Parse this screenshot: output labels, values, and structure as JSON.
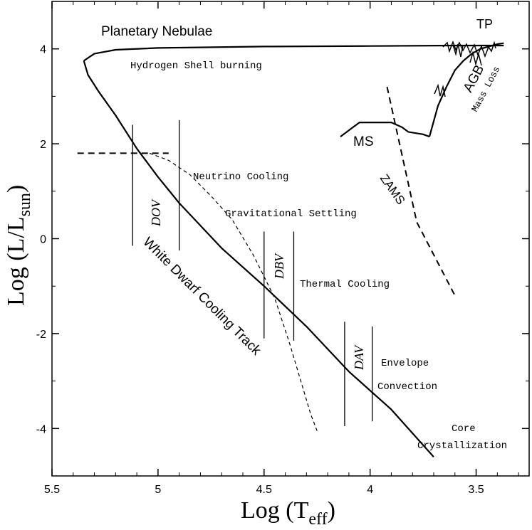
{
  "chart_data": {
    "type": "line",
    "x_axis": {
      "label_main": "Log (T",
      "label_sub": "eff",
      "label_close": ")",
      "range": [
        5.5,
        3.25
      ],
      "reversed": true,
      "ticks": [
        5.5,
        5,
        4.5,
        4,
        3.5
      ],
      "tick_labels": [
        "5.5",
        "5",
        "4.5",
        "4",
        "3.5"
      ]
    },
    "y_axis": {
      "label_main": "Log (L/L",
      "label_sub": "sun",
      "label_close": ")",
      "range": [
        -5,
        5
      ],
      "ticks": [
        -4,
        -2,
        0,
        2,
        4
      ],
      "tick_labels": [
        "-4",
        "-2",
        "0",
        "2",
        "4"
      ]
    },
    "grid": false,
    "series": [
      {
        "id": "evolution-track",
        "style": "solid-thick",
        "points": [
          [
            3.72,
            2.15
          ],
          [
            3.68,
            2.8
          ],
          [
            3.64,
            3.2
          ],
          [
            3.6,
            3.55
          ],
          [
            3.56,
            3.75
          ],
          [
            3.52,
            3.9
          ],
          [
            3.48,
            4.0
          ],
          [
            3.44,
            4.05
          ],
          [
            3.4,
            4.1
          ],
          [
            3.37,
            4.12
          ]
        ]
      },
      {
        "id": "ms-hook",
        "style": "solid-thick",
        "points": [
          [
            4.14,
            2.15
          ],
          [
            4.08,
            2.35
          ],
          [
            4.05,
            2.45
          ],
          [
            3.98,
            2.45
          ],
          [
            3.9,
            2.45
          ],
          [
            3.85,
            2.35
          ],
          [
            3.82,
            2.25
          ],
          [
            3.75,
            2.2
          ],
          [
            3.72,
            2.15
          ]
        ]
      },
      {
        "id": "horizontal-track",
        "style": "solid-thick",
        "points": [
          [
            3.37,
            4.07
          ],
          [
            3.6,
            4.07
          ],
          [
            4.0,
            4.06
          ],
          [
            4.5,
            4.05
          ],
          [
            5.0,
            4.02
          ],
          [
            5.2,
            3.98
          ],
          [
            5.3,
            3.9
          ],
          [
            5.35,
            3.75
          ]
        ]
      },
      {
        "id": "white-dwarf-cooling-track",
        "style": "solid-thick",
        "points": [
          [
            5.35,
            3.75
          ],
          [
            5.33,
            3.45
          ],
          [
            5.28,
            3.1
          ],
          [
            5.2,
            2.6
          ],
          [
            5.1,
            1.9
          ],
          [
            5.0,
            1.3
          ],
          [
            4.9,
            0.75
          ],
          [
            4.7,
            -0.2
          ],
          [
            4.5,
            -1.0
          ],
          [
            4.3,
            -1.85
          ],
          [
            4.1,
            -2.8
          ],
          [
            3.9,
            -3.6
          ],
          [
            3.7,
            -4.6
          ]
        ]
      },
      {
        "id": "gravitational-settling",
        "style": "dashed-thin",
        "points": [
          [
            5.04,
            1.8
          ],
          [
            4.95,
            1.65
          ],
          [
            4.85,
            1.35
          ],
          [
            4.75,
            0.9
          ],
          [
            4.65,
            0.4
          ],
          [
            4.55,
            -0.35
          ],
          [
            4.45,
            -1.25
          ],
          [
            4.38,
            -2.2
          ],
          [
            4.32,
            -3.1
          ],
          [
            4.28,
            -3.7
          ],
          [
            4.25,
            -4.05
          ]
        ]
      },
      {
        "id": "horizontal-dashed",
        "style": "dashed-thick",
        "points": [
          [
            5.38,
            1.8
          ],
          [
            4.95,
            1.8
          ]
        ]
      },
      {
        "id": "zams",
        "style": "dashed-thick",
        "points": [
          [
            3.92,
            3.2
          ],
          [
            3.78,
            0.35
          ],
          [
            3.6,
            -1.2
          ]
        ]
      }
    ],
    "instability_strips": [
      {
        "name": "DOV",
        "lines": [
          [
            5.12,
            2.4,
            -0.15
          ],
          [
            4.9,
            2.5,
            -0.25
          ]
        ]
      },
      {
        "name": "DBV",
        "lines": [
          [
            4.5,
            0.15,
            -2.1
          ],
          [
            4.36,
            0.15,
            -2.15
          ]
        ]
      },
      {
        "name": "DAV",
        "lines": [
          [
            4.12,
            -1.75,
            -3.95
          ],
          [
            3.99,
            -1.85,
            -3.85
          ]
        ]
      }
    ],
    "annotations": {
      "planetary_nebulae": "Planetary Nebulae",
      "tp": "TP",
      "hydrogen_shell": "Hydrogen Shell burning",
      "agb": "AGB",
      "mass_loss": "Mass Loss",
      "ms": "MS",
      "neutrino_cooling": "Neutrino Cooling",
      "zams": "ZAMS",
      "gravitational_settling": "Gravitational Settling",
      "white_dwarf_track": "White Dwarf Cooling Track",
      "thermal_cooling": "Thermal Cooling",
      "envelope": "Envelope",
      "convection": "Convection",
      "core": "Core",
      "crystallization": "Crystallization",
      "dov": "DOV",
      "dbv": "DBV",
      "dav": "DAV"
    }
  }
}
